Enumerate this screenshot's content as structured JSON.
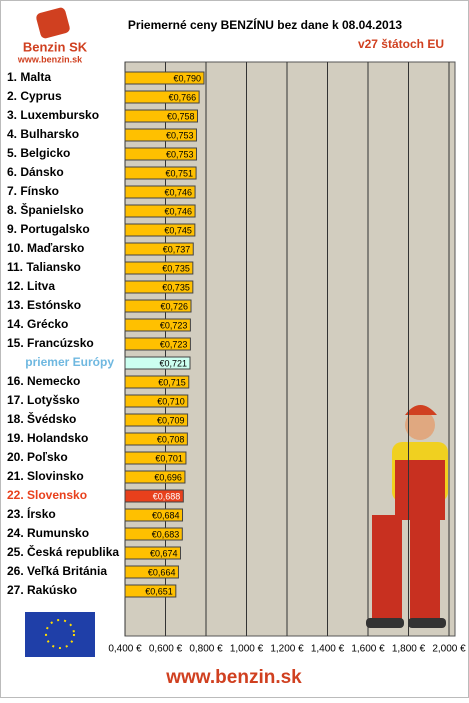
{
  "chart_data": {
    "type": "bar",
    "orientation": "horizontal",
    "title": "Priemerné ceny BENZÍNU bez dane k 08.04.2013",
    "subtitle": "v27 štátoch EU",
    "logo_text": "Benzin SK",
    "logo_url": "www.benzin.sk",
    "footer": "www.benzin.sk",
    "categories": [
      "1. Malta",
      "2. Cyprus",
      "3. Luxembursko",
      "4. Bulharsko",
      "5. Belgicko",
      "6. Dánsko",
      "7. Fínsko",
      "8. Španielsko",
      "9. Portugalsko",
      "10. Maďarsko",
      "11. Taliansko",
      "12. Litva",
      "13. Estónsko",
      "14. Grécko",
      "15. Francúzsko",
      "priemer Európy",
      "16. Nemecko",
      "17. Lotyšsko",
      "18. Švédsko",
      "19. Holandsko",
      "20. Poľsko",
      "21. Slovinsko",
      "22. Slovensko",
      "23. Írsko",
      "24. Rumunsko",
      "25. Česká republika",
      "26. Veľká Británia",
      "27. Rakúsko"
    ],
    "values": [
      0.79,
      0.766,
      0.758,
      0.753,
      0.753,
      0.751,
      0.746,
      0.746,
      0.745,
      0.737,
      0.735,
      0.735,
      0.726,
      0.723,
      0.723,
      0.721,
      0.715,
      0.71,
      0.709,
      0.708,
      0.701,
      0.696,
      0.688,
      0.684,
      0.683,
      0.674,
      0.664,
      0.651
    ],
    "value_labels": [
      "€0,790",
      "€0,766",
      "€0,758",
      "€0,753",
      "€0,753",
      "€0,751",
      "€0,746",
      "€0,746",
      "€0,745",
      "€0,737",
      "€0,735",
      "€0,735",
      "€0,726",
      "€0,723",
      "€0,723",
      "€0,721",
      "€0,715",
      "€0,710",
      "€0,709",
      "€0,708",
      "€0,701",
      "€0,696",
      "€0,688",
      "€0,684",
      "€0,683",
      "€0,674",
      "€0,664",
      "€0,651"
    ],
    "color": "#ffc000",
    "highlight_colors": {
      "15": "#ccfff0",
      "22": "#e8401c"
    },
    "label_color": "#000000",
    "label_highlight_colors": {
      "15": "#6fb8e0",
      "22": "#e8401c"
    },
    "xlim": [
      0.4,
      2.0
    ],
    "xticks": [
      {
        "value": 0.4,
        "label": "0,400 €"
      },
      {
        "value": 0.6,
        "label": "0,600 €"
      },
      {
        "value": 0.8,
        "label": "0,800 €"
      },
      {
        "value": 1.0,
        "label": "1,000 €"
      },
      {
        "value": 1.2,
        "label": "1,200 €"
      },
      {
        "value": 1.4,
        "label": "1,400 €"
      },
      {
        "value": 1.6,
        "label": "1,600 €"
      },
      {
        "value": 1.8,
        "label": "1,800 €"
      },
      {
        "value": 2.0,
        "label": "2,000 €"
      }
    ],
    "grid": true
  }
}
